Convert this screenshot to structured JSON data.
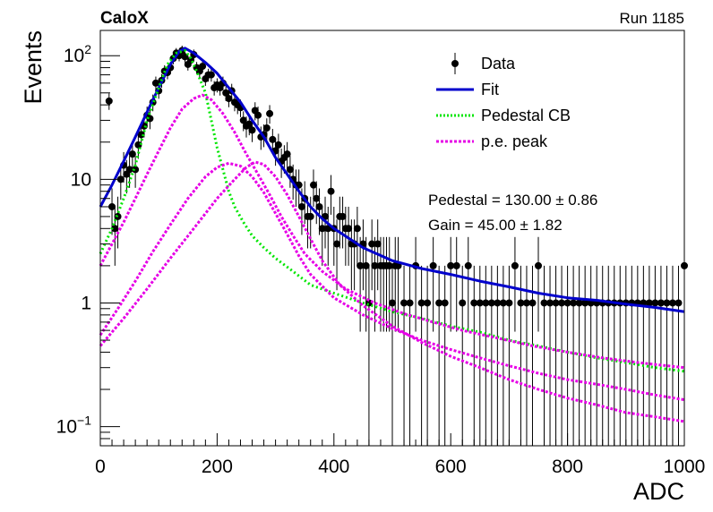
{
  "header": {
    "left_label": "CaloX",
    "right_label": "Run 1185"
  },
  "chart_data": {
    "type": "scatter",
    "xlabel": "ADC",
    "ylabel": "Events",
    "xlim": [
      0,
      1000
    ],
    "ylim": [
      0.07,
      160
    ],
    "yscale": "log",
    "xticks": [
      "0",
      "200",
      "400",
      "600",
      "800",
      "1000"
    ],
    "yticks": [
      {
        "value": 0.1,
        "base": "10",
        "exp": "−1"
      },
      {
        "value": 1,
        "label": "1"
      },
      {
        "value": 10,
        "label": "10"
      },
      {
        "value": 100,
        "base": "10",
        "exp": "2"
      }
    ],
    "legend": {
      "placement": "top-right",
      "entries": [
        {
          "label": "Data",
          "style": "marker",
          "color": "#000000"
        },
        {
          "label": "Fit",
          "style": "line",
          "color": "#0000cc"
        },
        {
          "label": "Pedestal CB",
          "style": "dotted",
          "color": "#00e600"
        },
        {
          "label": "p.e. peak",
          "style": "dashed",
          "color": "#e600e6"
        }
      ]
    },
    "annotations": [
      {
        "text": "Pedestal = 130.00 ± 0.86"
      },
      {
        "text": "Gain = 45.00 ± 1.82"
      }
    ],
    "series": [
      {
        "name": "Data",
        "kind": "points",
        "color": "#000000",
        "points": [
          [
            15,
            43
          ],
          [
            20,
            6
          ],
          [
            25,
            4
          ],
          [
            30,
            5
          ],
          [
            35,
            10
          ],
          [
            40,
            13
          ],
          [
            45,
            11
          ],
          [
            50,
            12
          ],
          [
            55,
            16
          ],
          [
            60,
            12
          ],
          [
            65,
            19
          ],
          [
            70,
            23
          ],
          [
            75,
            27
          ],
          [
            80,
            33
          ],
          [
            85,
            31
          ],
          [
            90,
            42
          ],
          [
            95,
            60
          ],
          [
            100,
            52
          ],
          [
            105,
            63
          ],
          [
            110,
            75
          ],
          [
            115,
            73
          ],
          [
            120,
            80
          ],
          [
            125,
            95
          ],
          [
            130,
            105
          ],
          [
            135,
            100
          ],
          [
            140,
            110
          ],
          [
            145,
            98
          ],
          [
            150,
            85
          ],
          [
            155,
            92
          ],
          [
            160,
            102
          ],
          [
            165,
            80
          ],
          [
            170,
            75
          ],
          [
            175,
            82
          ],
          [
            180,
            65
          ],
          [
            185,
            70
          ],
          [
            190,
            70
          ],
          [
            195,
            55
          ],
          [
            200,
            58
          ],
          [
            205,
            55
          ],
          [
            210,
            60
          ],
          [
            215,
            50
          ],
          [
            220,
            45
          ],
          [
            225,
            52
          ],
          [
            230,
            42
          ],
          [
            235,
            40
          ],
          [
            240,
            38
          ],
          [
            245,
            30
          ],
          [
            250,
            27
          ],
          [
            255,
            28
          ],
          [
            260,
            25
          ],
          [
            265,
            36
          ],
          [
            270,
            33
          ],
          [
            275,
            22
          ],
          [
            280,
            23
          ],
          [
            285,
            26
          ],
          [
            290,
            34
          ],
          [
            295,
            21
          ],
          [
            300,
            17
          ],
          [
            305,
            19
          ],
          [
            310,
            14
          ],
          [
            315,
            15
          ],
          [
            320,
            16
          ],
          [
            325,
            12
          ],
          [
            330,
            10
          ],
          [
            335,
            9
          ],
          [
            340,
            9
          ],
          [
            345,
            6
          ],
          [
            350,
            7
          ],
          [
            355,
            5
          ],
          [
            360,
            5
          ],
          [
            365,
            9
          ],
          [
            370,
            7
          ],
          [
            375,
            6
          ],
          [
            380,
            4
          ],
          [
            385,
            5
          ],
          [
            390,
            4
          ],
          [
            395,
            8
          ],
          [
            400,
            4
          ],
          [
            405,
            3
          ],
          [
            410,
            5
          ],
          [
            415,
            5
          ],
          [
            420,
            4
          ],
          [
            425,
            4
          ],
          [
            430,
            3
          ],
          [
            435,
            3
          ],
          [
            440,
            4
          ],
          [
            445,
            2
          ],
          [
            450,
            3
          ],
          [
            455,
            2
          ],
          [
            460,
            1
          ],
          [
            465,
            3
          ],
          [
            470,
            2
          ],
          [
            475,
            3
          ],
          [
            480,
            2
          ],
          [
            485,
            2
          ],
          [
            490,
            2
          ],
          [
            495,
            2
          ],
          [
            500,
            1
          ],
          [
            505,
            2
          ],
          [
            510,
            2
          ],
          [
            520,
            1
          ],
          [
            530,
            1
          ],
          [
            540,
            2
          ],
          [
            550,
            1
          ],
          [
            560,
            1
          ],
          [
            570,
            2
          ],
          [
            580,
            1
          ],
          [
            590,
            1
          ],
          [
            600,
            2
          ],
          [
            610,
            2
          ],
          [
            620,
            1
          ],
          [
            630,
            2
          ],
          [
            640,
            1
          ],
          [
            650,
            1
          ],
          [
            660,
            1
          ],
          [
            670,
            1
          ],
          [
            680,
            1
          ],
          [
            690,
            1
          ],
          [
            700,
            1
          ],
          [
            710,
            2
          ],
          [
            720,
            1
          ],
          [
            730,
            1
          ],
          [
            740,
            1
          ],
          [
            750,
            2
          ],
          [
            760,
            1
          ],
          [
            770,
            1
          ],
          [
            780,
            1
          ],
          [
            790,
            1
          ],
          [
            800,
            1
          ],
          [
            810,
            1
          ],
          [
            820,
            1
          ],
          [
            830,
            1
          ],
          [
            840,
            1
          ],
          [
            850,
            1
          ],
          [
            860,
            1
          ],
          [
            870,
            1
          ],
          [
            880,
            1
          ],
          [
            890,
            1
          ],
          [
            900,
            1
          ],
          [
            910,
            1
          ],
          [
            920,
            1
          ],
          [
            930,
            1
          ],
          [
            940,
            1
          ],
          [
            950,
            1
          ],
          [
            960,
            1
          ],
          [
            970,
            1
          ],
          [
            980,
            1
          ],
          [
            990,
            1
          ],
          [
            1000,
            2
          ]
        ]
      },
      {
        "name": "Fit",
        "kind": "line",
        "color": "#0000cc",
        "points": [
          [
            0,
            6
          ],
          [
            20,
            9
          ],
          [
            40,
            14
          ],
          [
            60,
            22
          ],
          [
            80,
            35
          ],
          [
            100,
            55
          ],
          [
            120,
            85
          ],
          [
            135,
            108
          ],
          [
            145,
            115
          ],
          [
            160,
            105
          ],
          [
            180,
            88
          ],
          [
            200,
            72
          ],
          [
            220,
            55
          ],
          [
            240,
            42
          ],
          [
            260,
            30
          ],
          [
            280,
            22
          ],
          [
            300,
            15
          ],
          [
            320,
            11
          ],
          [
            340,
            8
          ],
          [
            360,
            6
          ],
          [
            380,
            4.8
          ],
          [
            400,
            4
          ],
          [
            450,
            2.8
          ],
          [
            500,
            2.2
          ],
          [
            550,
            1.9
          ],
          [
            600,
            1.7
          ],
          [
            650,
            1.5
          ],
          [
            700,
            1.35
          ],
          [
            750,
            1.2
          ],
          [
            800,
            1.1
          ],
          [
            850,
            1.05
          ],
          [
            900,
            0.98
          ],
          [
            950,
            0.92
          ],
          [
            1000,
            0.85
          ]
        ]
      },
      {
        "name": "Pedestal CB",
        "kind": "line",
        "color": "#00e600",
        "points": [
          [
            0,
            2.5
          ],
          [
            20,
            4
          ],
          [
            40,
            7
          ],
          [
            60,
            13
          ],
          [
            80,
            30
          ],
          [
            100,
            55
          ],
          [
            115,
            85
          ],
          [
            130,
            105
          ],
          [
            145,
            110
          ],
          [
            155,
            95
          ],
          [
            165,
            75
          ],
          [
            180,
            50
          ],
          [
            190,
            30
          ],
          [
            200,
            18
          ],
          [
            210,
            12
          ],
          [
            220,
            8
          ],
          [
            230,
            6
          ],
          [
            245,
            4.5
          ],
          [
            260,
            3.5
          ],
          [
            280,
            2.8
          ],
          [
            300,
            2.3
          ],
          [
            330,
            1.8
          ],
          [
            360,
            1.4
          ],
          [
            400,
            1.2
          ],
          [
            450,
            1.0
          ],
          [
            500,
            0.85
          ],
          [
            550,
            0.75
          ],
          [
            600,
            0.65
          ],
          [
            650,
            0.58
          ],
          [
            700,
            0.5
          ],
          [
            750,
            0.45
          ],
          [
            800,
            0.4
          ],
          [
            850,
            0.36
          ],
          [
            900,
            0.33
          ],
          [
            950,
            0.3
          ],
          [
            1000,
            0.28
          ]
        ]
      },
      {
        "name": "p.e. peak 1",
        "kind": "line",
        "color": "#e600e6",
        "points": [
          [
            0,
            2
          ],
          [
            20,
            3
          ],
          [
            40,
            4.5
          ],
          [
            60,
            7
          ],
          [
            80,
            11
          ],
          [
            100,
            17
          ],
          [
            120,
            26
          ],
          [
            140,
            37
          ],
          [
            160,
            45
          ],
          [
            175,
            48
          ],
          [
            190,
            44
          ],
          [
            210,
            34
          ],
          [
            230,
            24
          ],
          [
            250,
            16
          ],
          [
            270,
            11
          ],
          [
            290,
            7.5
          ],
          [
            310,
            5
          ],
          [
            330,
            3.5
          ],
          [
            350,
            2.5
          ],
          [
            380,
            1.8
          ],
          [
            420,
            1.3
          ],
          [
            470,
            1.0
          ],
          [
            520,
            0.82
          ],
          [
            570,
            0.7
          ],
          [
            620,
            0.6
          ],
          [
            680,
            0.52
          ],
          [
            740,
            0.45
          ],
          [
            800,
            0.4
          ],
          [
            860,
            0.36
          ],
          [
            920,
            0.33
          ],
          [
            1000,
            0.3
          ]
        ]
      },
      {
        "name": "p.e. peak 2",
        "kind": "line",
        "color": "#e600e6",
        "points": [
          [
            0,
            0.55
          ],
          [
            30,
            0.9
          ],
          [
            60,
            1.5
          ],
          [
            90,
            2.6
          ],
          [
            120,
            4.3
          ],
          [
            150,
            7
          ],
          [
            180,
            10.5
          ],
          [
            200,
            12.5
          ],
          [
            220,
            13.5
          ],
          [
            240,
            12.8
          ],
          [
            260,
            10.5
          ],
          [
            280,
            7.8
          ],
          [
            300,
            5.3
          ],
          [
            320,
            3.6
          ],
          [
            340,
            2.4
          ],
          [
            360,
            1.7
          ],
          [
            400,
            1.1
          ],
          [
            450,
            0.8
          ],
          [
            500,
            0.62
          ],
          [
            550,
            0.5
          ],
          [
            600,
            0.42
          ],
          [
            650,
            0.36
          ],
          [
            700,
            0.31
          ],
          [
            750,
            0.27
          ],
          [
            800,
            0.24
          ],
          [
            850,
            0.22
          ],
          [
            900,
            0.2
          ],
          [
            950,
            0.18
          ],
          [
            1000,
            0.165
          ]
        ]
      },
      {
        "name": "p.e. peak 3",
        "kind": "line",
        "color": "#e600e6",
        "points": [
          [
            0,
            0.45
          ],
          [
            40,
            0.75
          ],
          [
            80,
            1.3
          ],
          [
            120,
            2.3
          ],
          [
            160,
            4
          ],
          [
            200,
            7
          ],
          [
            230,
            10
          ],
          [
            250,
            12.5
          ],
          [
            265,
            13.8
          ],
          [
            280,
            13.2
          ],
          [
            300,
            10.5
          ],
          [
            320,
            7.5
          ],
          [
            340,
            5
          ],
          [
            360,
            3.3
          ],
          [
            380,
            2.2
          ],
          [
            410,
            1.4
          ],
          [
            450,
            0.95
          ],
          [
            500,
            0.65
          ],
          [
            550,
            0.48
          ],
          [
            600,
            0.37
          ],
          [
            650,
            0.3
          ],
          [
            700,
            0.24
          ],
          [
            750,
            0.2
          ],
          [
            800,
            0.17
          ],
          [
            850,
            0.15
          ],
          [
            900,
            0.13
          ],
          [
            950,
            0.12
          ],
          [
            1000,
            0.11
          ]
        ]
      }
    ]
  }
}
